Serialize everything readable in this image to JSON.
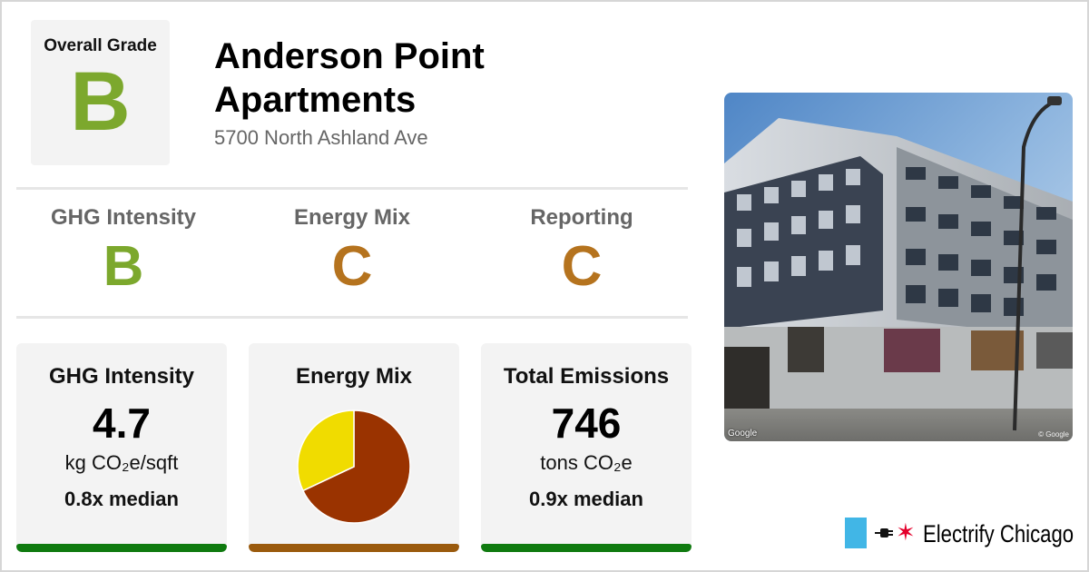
{
  "overall": {
    "label": "Overall Grade",
    "grade": "B",
    "grade_color": "#7ca82d"
  },
  "building": {
    "name": "Anderson Point Apartments",
    "address": "5700 North Ashland Ave"
  },
  "subgrades": [
    {
      "label": "GHG Intensity",
      "grade": "B",
      "color": "#7ca82d"
    },
    {
      "label": "Energy Mix",
      "grade": "C",
      "color": "#b5731e"
    },
    {
      "label": "Reporting",
      "grade": "C",
      "color": "#b5731e"
    }
  ],
  "cards": {
    "ghg": {
      "title": "GHG Intensity",
      "value": "4.7",
      "unit": "kg CO₂e/sqft",
      "median": "0.8x median",
      "bar_color": "#0f7a0f"
    },
    "energy": {
      "title": "Energy Mix",
      "bar_color": "#9a5a0d"
    },
    "emissions": {
      "title": "Total Emissions",
      "value": "746",
      "unit": "tons CO₂e",
      "median": "0.9x median",
      "bar_color": "#0f7a0f"
    }
  },
  "chart_data": {
    "type": "pie",
    "slices": [
      {
        "share": 0.68,
        "color": "#9a3300"
      },
      {
        "share": 0.32,
        "color": "#f0dc00"
      }
    ]
  },
  "photo": {
    "credit": "Google",
    "credit_right": "© Google"
  },
  "brand": {
    "name": "Electrify Chicago",
    "star": "✶",
    "flag_color": "#41b6e6",
    "star_color": "#e4002b"
  }
}
